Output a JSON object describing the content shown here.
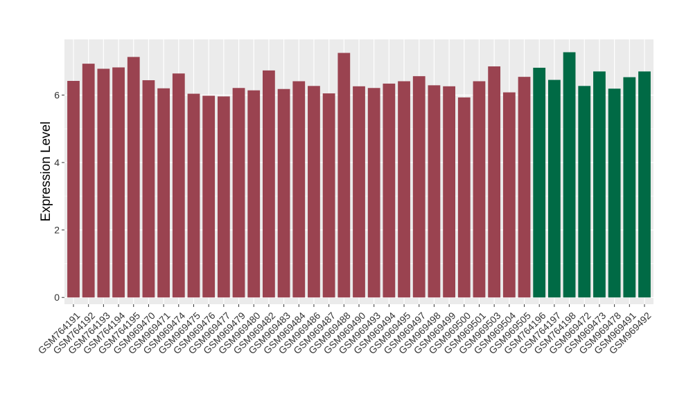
{
  "chart_data": {
    "type": "bar",
    "title": "",
    "xlabel": "",
    "ylabel": "Expression Level",
    "ylim": [
      -0.2,
      7.65
    ],
    "yticks": [
      0,
      2,
      4,
      6
    ],
    "grid": true,
    "legend": "none",
    "panel_background": "#EBEBEB",
    "grid_color": "#FFFFFF",
    "colors": {
      "group_a": "#9A4350",
      "group_b": "#006A45"
    },
    "categories": [
      "GSM764191",
      "GSM764192",
      "GSM764193",
      "GSM764194",
      "GSM764195",
      "GSM969470",
      "GSM969471",
      "GSM969474",
      "GSM969475",
      "GSM969476",
      "GSM969477",
      "GSM969479",
      "GSM969480",
      "GSM969482",
      "GSM969483",
      "GSM969484",
      "GSM969486",
      "GSM969487",
      "GSM969488",
      "GSM969490",
      "GSM969493",
      "GSM969494",
      "GSM969495",
      "GSM969497",
      "GSM969498",
      "GSM969499",
      "GSM969500",
      "GSM969501",
      "GSM969503",
      "GSM969504",
      "GSM969505",
      "GSM764196",
      "GSM764197",
      "GSM764198",
      "GSM969472",
      "GSM969473",
      "GSM969478",
      "GSM969491",
      "GSM969492"
    ],
    "values": [
      6.42,
      6.93,
      6.78,
      6.82,
      7.13,
      6.44,
      6.2,
      6.64,
      6.04,
      5.98,
      5.96,
      6.21,
      6.14,
      6.73,
      6.18,
      6.41,
      6.27,
      6.05,
      7.25,
      6.26,
      6.21,
      6.34,
      6.41,
      6.56,
      6.29,
      6.26,
      5.93,
      6.41,
      6.85,
      6.08,
      6.54,
      6.81,
      6.45,
      7.27,
      6.27,
      6.7,
      6.19,
      6.53,
      6.7
    ],
    "groups": [
      "a",
      "a",
      "a",
      "a",
      "a",
      "a",
      "a",
      "a",
      "a",
      "a",
      "a",
      "a",
      "a",
      "a",
      "a",
      "a",
      "a",
      "a",
      "a",
      "a",
      "a",
      "a",
      "a",
      "a",
      "a",
      "a",
      "a",
      "a",
      "a",
      "a",
      "a",
      "b",
      "b",
      "b",
      "b",
      "b",
      "b",
      "b",
      "b"
    ]
  }
}
